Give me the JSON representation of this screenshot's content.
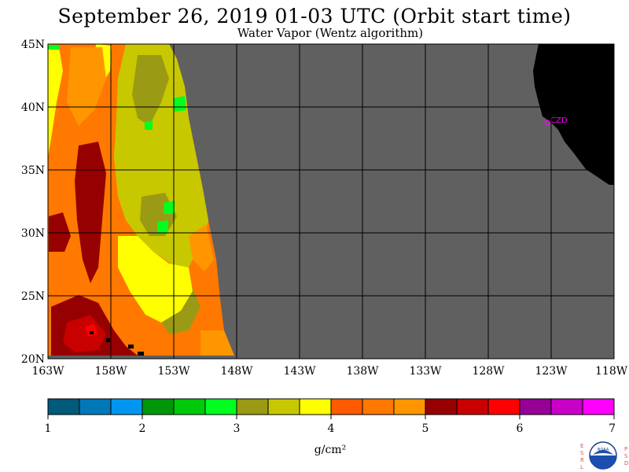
{
  "title": "September 26, 2019  01-03 UTC  (Orbit start time)",
  "subtitle": "Water Vapor (Wentz algorithm)",
  "map": {
    "lat_labels": [
      "45N",
      "40N",
      "35N",
      "30N",
      "25N",
      "20N"
    ],
    "lon_labels": [
      "163W",
      "158W",
      "153W",
      "148W",
      "143W",
      "138W",
      "133W",
      "128W",
      "123W",
      "118W"
    ],
    "station_label": "CZD",
    "colors": {
      "no_data": "#606060",
      "land": "#000000",
      "grid": "#000000",
      "station": "#ff00ff"
    }
  },
  "colorbar": {
    "colors": [
      "#005a7a",
      "#0078b8",
      "#0096f0",
      "#00960a",
      "#00c80a",
      "#00ff1e",
      "#9a9a14",
      "#c8c800",
      "#ffff00",
      "#ff5a00",
      "#ff7800",
      "#ff9600",
      "#960000",
      "#c80000",
      "#ff0000",
      "#960096",
      "#c800c8",
      "#ff00ff"
    ],
    "tick_labels": [
      "1",
      "2",
      "3",
      "4",
      "5",
      "6",
      "7"
    ],
    "units": "g/cm²"
  },
  "logo": {
    "left_letters": "ESRL",
    "right_letters": "PSD",
    "center": "NOAA"
  }
}
